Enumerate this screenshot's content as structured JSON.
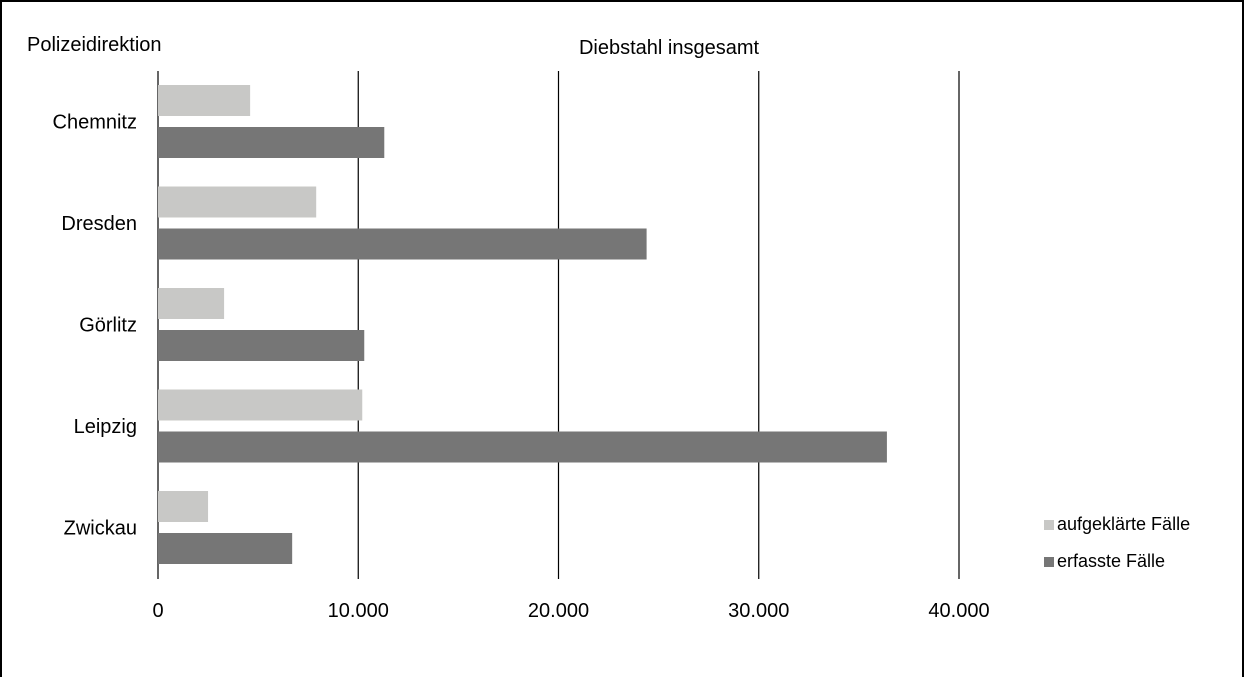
{
  "chart_data": {
    "type": "bar",
    "orientation": "horizontal",
    "title": "Diebstahl insgesamt",
    "category_axis_title": "Polizeidirektion",
    "categories": [
      "Chemnitz",
      "Dresden",
      "Görlitz",
      "Leipzig",
      "Zwickau"
    ],
    "series": [
      {
        "name": "aufgeklärte Fälle",
        "color": "#c8c8c6",
        "values": [
          4600,
          7900,
          3300,
          10200,
          2500
        ]
      },
      {
        "name": "erfasste Fälle",
        "color": "#767676",
        "values": [
          11300,
          24400,
          10300,
          36400,
          6700
        ]
      }
    ],
    "xlim": [
      0,
      40000
    ],
    "ticks": [
      0,
      10000,
      20000,
      30000,
      40000
    ],
    "tick_labels": [
      "0",
      "10.000",
      "20.000",
      "30.000",
      "40.000"
    ],
    "gridlines": true,
    "legend_position": "bottom-right"
  }
}
